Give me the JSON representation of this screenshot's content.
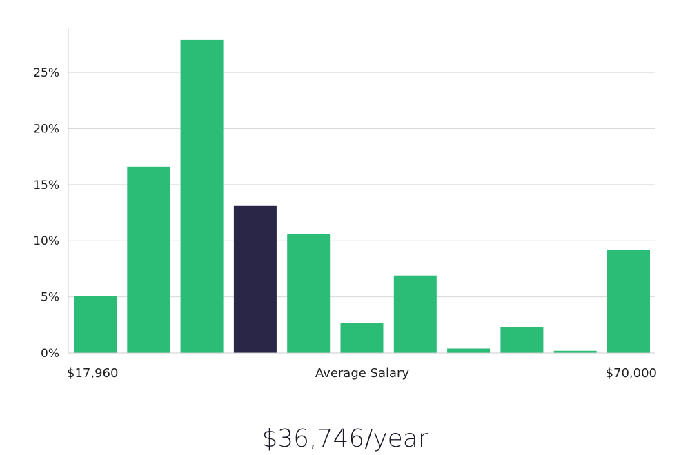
{
  "chart_data": {
    "type": "bar",
    "values": [
      5.1,
      16.6,
      27.9,
      13.1,
      10.6,
      2.7,
      6.9,
      0.4,
      2.3,
      0.2,
      9.2
    ],
    "highlight_index": 3,
    "ylim": [
      0,
      29
    ],
    "y_ticks": [
      0,
      5,
      10,
      15,
      20,
      25
    ],
    "y_tick_suffix": "%",
    "grid": true,
    "x_labels": {
      "min": "$17,960",
      "center": "Average Salary",
      "max": "$70,000"
    },
    "colors": {
      "bar": "#2bbd76",
      "highlight": "#2a2647",
      "grid": "#d9d9d9",
      "axis": "#cccccc"
    }
  },
  "headline": "$36,746/year"
}
